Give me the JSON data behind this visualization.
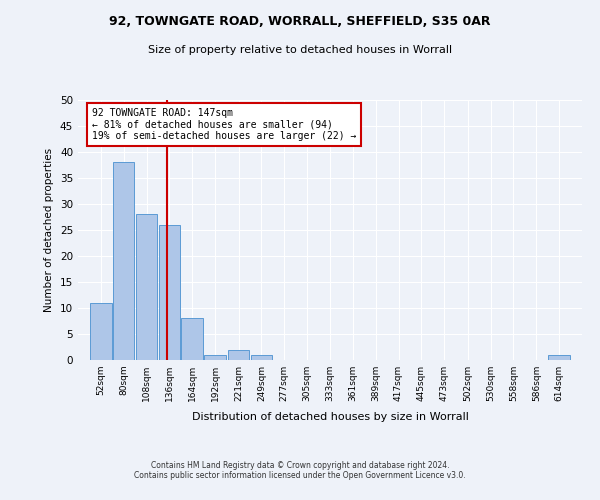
{
  "title1": "92, TOWNGATE ROAD, WORRALL, SHEFFIELD, S35 0AR",
  "title2": "Size of property relative to detached houses in Worrall",
  "xlabel": "Distribution of detached houses by size in Worrall",
  "ylabel": "Number of detached properties",
  "bins": [
    52,
    80,
    108,
    136,
    164,
    192,
    221,
    249,
    277,
    305,
    333,
    361,
    389,
    417,
    445,
    473,
    502,
    530,
    558,
    586,
    614
  ],
  "counts": [
    11,
    38,
    28,
    26,
    8,
    1,
    2,
    1,
    0,
    0,
    0,
    0,
    0,
    0,
    0,
    0,
    0,
    0,
    0,
    0,
    1
  ],
  "bar_color": "#aec6e8",
  "bar_edge_color": "#5b9bd5",
  "red_line_x": 147,
  "ylim": [
    0,
    50
  ],
  "yticks": [
    0,
    5,
    10,
    15,
    20,
    25,
    30,
    35,
    40,
    45,
    50
  ],
  "annotation_title": "92 TOWNGATE ROAD: 147sqm",
  "annotation_line1": "← 81% of detached houses are smaller (94)",
  "annotation_line2": "19% of semi-detached houses are larger (22) →",
  "annotation_box_color": "#ffffff",
  "annotation_box_edge": "#cc0000",
  "footer1": "Contains HM Land Registry data © Crown copyright and database right 2024.",
  "footer2": "Contains public sector information licensed under the Open Government Licence v3.0.",
  "bg_color": "#eef2f9",
  "grid_color": "#ffffff"
}
